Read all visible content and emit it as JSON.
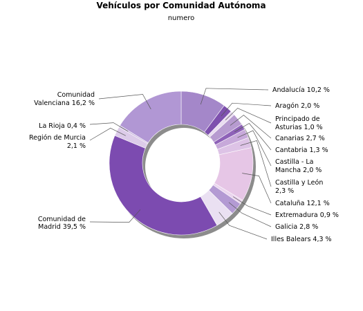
{
  "chart_data": {
    "type": "pie",
    "variant": "donut",
    "title": "Vehículos por Comunidad Autónoma",
    "subtitle": "numero",
    "slices": [
      {
        "label": "Andalucía 10,2 %",
        "value": 10.2,
        "color": "#a487c9"
      },
      {
        "label": "Aragón 2,0 %",
        "value": 2.0,
        "color": "#7e50ae"
      },
      {
        "label": "Principado de Asturias 1,0 %",
        "value": 1.0,
        "color": "#e9dcf0"
      },
      {
        "label": "Canarias 2,7 %",
        "value": 2.7,
        "color": "#b79bd0"
      },
      {
        "label": "Cantabria 1,3 %",
        "value": 1.3,
        "color": "#8e62b8"
      },
      {
        "label": "Castilla - La Mancha 2,0 %",
        "value": 2.0,
        "color": "#c7a9da"
      },
      {
        "label": "Castilla y León 2,3 %",
        "value": 2.3,
        "color": "#ddc3e6"
      },
      {
        "label": "Cataluña 12,1 %",
        "value": 12.1,
        "color": "#e6c6e6"
      },
      {
        "label": "Extremadura 0,9 %",
        "value": 0.9,
        "color": "#ead5ee"
      },
      {
        "label": "Galicia 2,8 %",
        "value": 2.8,
        "color": "#b39ad3"
      },
      {
        "label": "Illes Balears 4,3 %",
        "value": 4.3,
        "color": "#eae0f2"
      },
      {
        "label": "Comunidad de Madrid 39,5 %",
        "value": 39.5,
        "color": "#7c4bb0"
      },
      {
        "label": "Región de Murcia 2,1 %",
        "value": 2.1,
        "color": "#dccbe9"
      },
      {
        "label": "La Rioja 0,4 %",
        "value": 0.4,
        "color": "#c9b5de"
      },
      {
        "label": "Comunidad Valenciana 16,2 %",
        "value": 16.2,
        "color": "#b197d4"
      }
    ],
    "legend": "callout labels"
  }
}
